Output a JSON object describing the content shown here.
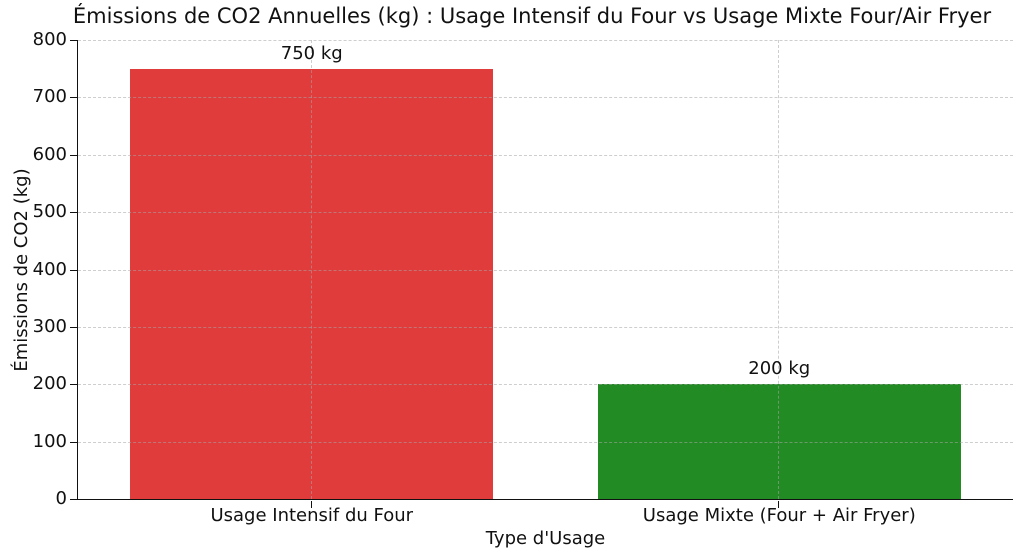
{
  "chart_data": {
    "type": "bar",
    "title": "Émissions de CO2 Annuelles (kg) : Usage Intensif du Four vs Usage Mixte Four/Air Fryer",
    "xlabel": "Type d'Usage",
    "ylabel": "Émissions de CO2 (kg)",
    "categories": [
      "Usage Intensif du Four",
      "Usage Mixte (Four + Air Fryer)"
    ],
    "values": [
      750,
      200
    ],
    "bar_labels": [
      "750 kg",
      "200 kg"
    ],
    "bar_colors": [
      "#e03c3c",
      "#238b23"
    ],
    "ylim": [
      0,
      800
    ],
    "ytick_step": 100,
    "ytick_labels": [
      "0",
      "100",
      "200",
      "300",
      "400",
      "500",
      "600",
      "700",
      "800"
    ],
    "grid": {
      "style": "dashed",
      "axes": "both",
      "color": "#a5a5a5"
    },
    "legend": "none",
    "background": "#ffffff",
    "bar_width_fraction": 0.388
  }
}
